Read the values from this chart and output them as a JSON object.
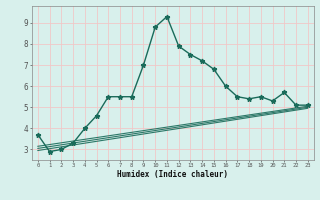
{
  "xlabel": "Humidex (Indice chaleur)",
  "bg_color": "#d8f0ec",
  "grid_color": "#f0c8c8",
  "line_color": "#1a6b5a",
  "xlim": [
    -0.5,
    23.5
  ],
  "ylim": [
    2.5,
    9.8
  ],
  "xtick_vals": [
    0,
    1,
    2,
    3,
    4,
    5,
    6,
    7,
    8,
    9,
    10,
    11,
    12,
    13,
    14,
    15,
    16,
    17,
    18,
    19,
    20,
    21,
    22,
    23
  ],
  "xtick_labels": [
    "0",
    "1",
    "2",
    "3",
    "4",
    "5",
    "6",
    "7",
    "8",
    "9",
    "10",
    "11",
    "12",
    "13",
    "14",
    "15",
    "16",
    "17",
    "18",
    "19",
    "20",
    "21",
    "22",
    "23"
  ],
  "ytick_vals": [
    3,
    4,
    5,
    6,
    7,
    8,
    9
  ],
  "ytick_labels": [
    "3",
    "4",
    "5",
    "6",
    "7",
    "8",
    "9"
  ],
  "main_line_x": [
    0,
    1,
    2,
    3,
    4,
    5,
    6,
    7,
    8,
    9,
    10,
    11,
    12,
    13,
    14,
    15,
    16,
    17,
    18,
    19,
    20,
    21,
    22,
    23
  ],
  "main_line_y": [
    3.7,
    2.9,
    3.0,
    3.3,
    4.0,
    4.6,
    5.5,
    5.5,
    5.5,
    7.0,
    8.8,
    9.3,
    7.9,
    7.5,
    7.2,
    6.8,
    6.0,
    5.5,
    5.4,
    5.5,
    5.3,
    5.7,
    5.1,
    5.1
  ],
  "linear_lines": [
    {
      "x": [
        0,
        23
      ],
      "y": [
        2.95,
        4.95
      ]
    },
    {
      "x": [
        0,
        23
      ],
      "y": [
        3.05,
        5.0
      ]
    },
    {
      "x": [
        0,
        23
      ],
      "y": [
        3.15,
        5.05
      ]
    }
  ]
}
